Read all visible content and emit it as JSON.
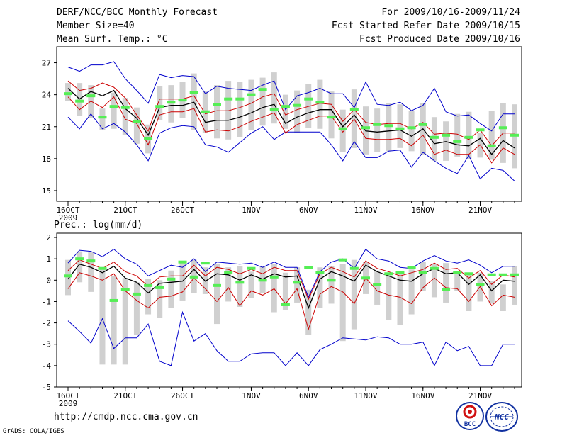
{
  "header": {
    "title": "DERF/NCC/BCC Monthly Forecast",
    "member_size": "Member Size=40",
    "variable": "Mean Surf. Temp.: °C",
    "period": "For 2009/10/16-2009/11/24",
    "refer_date": "Fcst Started Refer Date 2009/10/15",
    "produced_date": "Fcst Produced Date 2009/10/16"
  },
  "footer": {
    "url": "http://cmdp.ncc.cma.gov.cn",
    "grads": "GrADS: COLA/IGES"
  },
  "logos": {
    "bcc": "BCC",
    "ncc": "NCC"
  },
  "colors": {
    "max_min": "#0000cc",
    "spread": "#cc0000",
    "mean": "#000000",
    "observed": "#55ee55",
    "box": "#d0d0d0"
  },
  "chart_data": [
    {
      "type": "line",
      "title": "Mean Surf. Temp.: °C",
      "ylim": [
        14,
        28.5
      ],
      "yticks": [
        15,
        18,
        21,
        24,
        27
      ],
      "xticks": [
        {
          "day": 1,
          "label": "16OCT",
          "sub": "2009"
        },
        {
          "day": 6,
          "label": "21OCT"
        },
        {
          "day": 11,
          "label": "26OCT"
        },
        {
          "day": 17,
          "label": "1NOV"
        },
        {
          "day": 22,
          "label": "6NOV"
        },
        {
          "day": 27,
          "label": "11NOV"
        },
        {
          "day": 32,
          "label": "16NOV"
        },
        {
          "day": 37,
          "label": "21NOV"
        }
      ],
      "x": [
        1,
        2,
        3,
        4,
        5,
        6,
        7,
        8,
        9,
        10,
        11,
        12,
        13,
        14,
        15,
        16,
        17,
        18,
        19,
        20,
        21,
        22,
        23,
        24,
        25,
        26,
        27,
        28,
        29,
        30,
        31,
        32,
        33,
        34,
        35,
        36,
        37,
        38,
        39,
        40
      ],
      "series": [
        {
          "name": "max",
          "values": [
            26.6,
            26.2,
            26.8,
            26.8,
            27.1,
            25.5,
            24.4,
            23.2,
            25.9,
            25.6,
            25.8,
            25.7,
            24.1,
            24.8,
            24.6,
            24.5,
            24.4,
            24.9,
            25.3,
            22.6,
            23.9,
            24.2,
            24.6,
            24.1,
            24.1,
            22.8,
            25.2,
            23.1,
            23.0,
            23.3,
            22.5,
            23.0,
            24.6,
            22.4,
            22.0,
            22.1,
            21.3,
            20.6,
            22.2,
            22.2
          ]
        },
        {
          "name": "upper",
          "values": [
            25.3,
            24.4,
            24.6,
            25.1,
            24.7,
            23.7,
            22.1,
            20.6,
            23.6,
            23.6,
            23.6,
            23.9,
            22.2,
            22.5,
            22.5,
            22.8,
            23.2,
            23.8,
            24.1,
            22.1,
            22.6,
            22.9,
            23.2,
            23.1,
            21.5,
            22.6,
            21.4,
            21.2,
            21.3,
            21.3,
            20.8,
            21.4,
            20.3,
            20.4,
            20.3,
            19.8,
            20.7,
            19.2,
            20.4,
            20.4
          ]
        },
        {
          "name": "mean",
          "values": [
            24.6,
            23.6,
            24.3,
            23.9,
            24.4,
            22.7,
            21.8,
            20.2,
            22.8,
            23.0,
            23.0,
            23.3,
            21.4,
            21.6,
            21.6,
            21.9,
            22.3,
            22.8,
            23.1,
            21.3,
            21.9,
            22.3,
            22.6,
            22.6,
            21.0,
            22.1,
            20.6,
            20.5,
            20.6,
            20.7,
            20.1,
            20.8,
            19.4,
            19.6,
            19.3,
            19.2,
            19.9,
            18.4,
            19.7,
            19.0
          ]
        },
        {
          "name": "lower",
          "values": [
            23.8,
            22.6,
            23.4,
            22.8,
            23.8,
            21.7,
            21.3,
            19.3,
            22.1,
            22.4,
            22.4,
            22.7,
            20.5,
            20.7,
            20.6,
            21.0,
            21.5,
            21.9,
            22.3,
            20.4,
            21.2,
            21.6,
            22.0,
            22.0,
            20.5,
            21.7,
            19.9,
            19.8,
            19.8,
            19.9,
            19.2,
            20.2,
            18.4,
            18.8,
            18.4,
            18.4,
            19.3,
            17.6,
            19.0,
            18.4
          ]
        },
        {
          "name": "min",
          "values": [
            21.9,
            20.8,
            22.2,
            20.8,
            21.3,
            20.5,
            19.3,
            17.8,
            20.4,
            20.9,
            21.1,
            21.0,
            19.3,
            19.1,
            18.6,
            19.5,
            20.4,
            21.0,
            19.8,
            20.5,
            20.5,
            20.5,
            20.5,
            19.3,
            17.8,
            19.6,
            18.1,
            18.1,
            18.7,
            18.8,
            17.2,
            18.6,
            17.8,
            17.1,
            16.6,
            18.3,
            16.1,
            17.1,
            16.9,
            15.9
          ]
        },
        {
          "name": "observed",
          "values": [
            24.1,
            23.4,
            23.9,
            21.9,
            22.9,
            22.8,
            21.5,
            19.9,
            22.9,
            23.3,
            23.5,
            24.2,
            22.4,
            23.1,
            23.6,
            23.6,
            24.0,
            24.5,
            22.6,
            22.9,
            23.0,
            23.6,
            23.3,
            21.9,
            20.8,
            22.6,
            20.9,
            21.2,
            21.1,
            20.8,
            20.9,
            21.2,
            20.0,
            20.2,
            19.6,
            20.0,
            20.7,
            19.2,
            20.9,
            20.2
          ]
        }
      ],
      "boxes": [
        [
          23.4,
          25.1
        ],
        [
          22.0,
          25.1
        ],
        [
          21.8,
          24.9
        ],
        [
          20.7,
          22.7
        ],
        [
          20.8,
          24.2
        ],
        [
          20.2,
          23.7
        ],
        [
          19.4,
          22.8
        ],
        [
          18.5,
          21.2
        ],
        [
          21.6,
          24.8
        ],
        [
          21.4,
          24.9
        ],
        [
          21.8,
          25.2
        ],
        [
          20.7,
          26.0
        ],
        [
          20.4,
          24.3
        ],
        [
          19.9,
          24.9
        ],
        [
          19.8,
          25.3
        ],
        [
          20.0,
          25.2
        ],
        [
          20.7,
          25.4
        ],
        [
          21.1,
          25.6
        ],
        [
          21.3,
          26.1
        ],
        [
          20.8,
          24.0
        ],
        [
          20.4,
          24.4
        ],
        [
          20.9,
          25.0
        ],
        [
          20.8,
          25.4
        ],
        [
          19.9,
          24.3
        ],
        [
          18.6,
          22.6
        ],
        [
          19.0,
          24.5
        ],
        [
          18.4,
          22.9
        ],
        [
          18.6,
          22.7
        ],
        [
          18.7,
          23.2
        ],
        [
          19.0,
          23.1
        ],
        [
          18.7,
          22.5
        ],
        [
          18.4,
          23.2
        ],
        [
          17.8,
          21.9
        ],
        [
          17.8,
          21.5
        ],
        [
          18.2,
          22.2
        ],
        [
          18.0,
          22.4
        ],
        [
          18.1,
          20.4
        ],
        [
          17.9,
          22.5
        ],
        [
          17.6,
          23.2
        ],
        [
          17.1,
          23.1
        ]
      ]
    },
    {
      "type": "line",
      "title": "Prec.: log(mm/d)",
      "ylim": [
        -5,
        2.2
      ],
      "yticks": [
        -5,
        -4,
        -3,
        -2,
        -1,
        0,
        1,
        2
      ],
      "xticks": [
        {
          "day": 1,
          "label": "16OCT",
          "sub": "2009"
        },
        {
          "day": 6,
          "label": "21OCT"
        },
        {
          "day": 11,
          "label": "26OCT"
        },
        {
          "day": 17,
          "label": "1NOV"
        },
        {
          "day": 22,
          "label": "6NOV"
        },
        {
          "day": 27,
          "label": "11NOV"
        },
        {
          "day": 32,
          "label": "16NOV"
        },
        {
          "day": 37,
          "label": "21NOV"
        }
      ],
      "x": [
        1,
        2,
        3,
        4,
        5,
        6,
        7,
        8,
        9,
        10,
        11,
        12,
        13,
        14,
        15,
        16,
        17,
        18,
        19,
        20,
        21,
        22,
        23,
        24,
        25,
        26,
        27,
        28,
        29,
        30,
        31,
        32,
        33,
        34,
        35,
        36,
        37,
        38,
        39,
        40
      ],
      "series": [
        {
          "name": "max",
          "values": [
            0.8,
            1.4,
            1.35,
            1.1,
            1.45,
            1.0,
            0.75,
            0.2,
            0.45,
            0.7,
            0.6,
            1.0,
            0.4,
            0.85,
            0.8,
            0.75,
            0.8,
            0.6,
            0.85,
            0.6,
            0.6,
            -0.8,
            0.4,
            0.85,
            1.0,
            0.55,
            1.45,
            1.0,
            0.9,
            0.6,
            0.55,
            0.9,
            1.15,
            0.9,
            0.8,
            0.95,
            0.7,
            0.35,
            0.65,
            0.65
          ]
        },
        {
          "name": "upper",
          "values": [
            0.45,
            0.95,
            0.75,
            0.55,
            0.85,
            0.4,
            0.2,
            -0.3,
            0.15,
            0.2,
            0.2,
            0.7,
            0.2,
            0.6,
            0.5,
            0.3,
            0.5,
            0.3,
            0.6,
            0.45,
            0.45,
            -0.9,
            0.3,
            0.6,
            0.4,
            0.15,
            0.9,
            0.55,
            0.4,
            0.2,
            0.35,
            0.5,
            0.8,
            0.5,
            0.55,
            0.1,
            0.45,
            -0.2,
            0.25,
            0.15
          ]
        },
        {
          "name": "mean",
          "values": [
            0.05,
            0.75,
            0.6,
            0.35,
            0.65,
            0.1,
            -0.1,
            -0.6,
            -0.15,
            -0.1,
            -0.05,
            0.5,
            -0.05,
            0.3,
            0.25,
            0.0,
            0.25,
            0.05,
            0.3,
            0.15,
            0.2,
            -1.3,
            0.05,
            0.4,
            0.2,
            -0.05,
            0.7,
            0.4,
            0.2,
            0.0,
            -0.05,
            0.3,
            0.55,
            0.3,
            0.35,
            -0.2,
            0.25,
            -0.5,
            0.0,
            -0.05
          ]
        },
        {
          "name": "lower",
          "values": [
            -0.4,
            0.35,
            0.2,
            0.0,
            0.3,
            -0.5,
            -0.95,
            -1.3,
            -0.8,
            -0.75,
            -0.55,
            0.1,
            -0.4,
            -1.0,
            -0.35,
            -1.2,
            -0.5,
            -0.7,
            -0.4,
            -1.1,
            -0.4,
            -2.3,
            -0.65,
            -0.3,
            -0.55,
            -1.1,
            0.1,
            -0.5,
            -0.7,
            -0.8,
            -1.1,
            -0.35,
            0.1,
            -0.35,
            -0.4,
            -1.0,
            -0.3,
            -1.2,
            -0.7,
            -0.8
          ]
        },
        {
          "name": "min",
          "values": [
            -1.9,
            -2.4,
            -2.95,
            -1.8,
            -3.2,
            -2.7,
            -2.7,
            -2.05,
            -3.8,
            -4.0,
            -1.5,
            -2.85,
            -2.5,
            -3.3,
            -3.8,
            -3.8,
            -3.45,
            -3.4,
            -3.4,
            -4.0,
            -3.4,
            -4.0,
            -3.25,
            -3.0,
            -2.7,
            -2.75,
            -2.8,
            -2.65,
            -2.7,
            -3.0,
            -3.0,
            -2.9,
            -4.0,
            -2.9,
            -3.3,
            -3.1,
            -4.0,
            -4.0,
            -3.0,
            -3.0
          ]
        },
        {
          "name": "observed",
          "values": [
            0.2,
            1.0,
            0.9,
            0.55,
            -0.95,
            -0.45,
            -0.65,
            -0.25,
            -0.35,
            0.05,
            0.85,
            0.15,
            0.8,
            -0.25,
            0.35,
            -0.1,
            0.55,
            0.0,
            0.15,
            -1.15,
            -0.1,
            0.6,
            0.35,
            0.0,
            0.95,
            0.55,
            0.1,
            -0.2,
            0.3,
            0.35,
            0.6,
            0.35,
            0.55,
            -0.45,
            0.35,
            0.3,
            -0.2,
            0.25,
            0.25,
            0.25
          ]
        }
      ],
      "boxes": [
        [
          -0.7,
          0.95
        ],
        [
          -0.1,
          1.35
        ],
        [
          -0.55,
          1.3
        ],
        [
          -3.95,
          0.55
        ],
        [
          -3.95,
          0.2
        ],
        [
          -3.95,
          0.1
        ],
        [
          -2.55,
          -0.1
        ],
        [
          -1.6,
          0.05
        ],
        [
          -1.75,
          0.0
        ],
        [
          -1.3,
          0.45
        ],
        [
          -0.95,
          0.8
        ],
        [
          -0.6,
          0.95
        ],
        [
          -0.65,
          0.6
        ],
        [
          -2.05,
          0.75
        ],
        [
          -1.0,
          0.6
        ],
        [
          -1.25,
          0.65
        ],
        [
          -0.85,
          0.4
        ],
        [
          -0.6,
          0.65
        ],
        [
          -1.5,
          0.75
        ],
        [
          -1.4,
          0.35
        ],
        [
          -1.05,
          0.6
        ],
        [
          -2.55,
          -0.45
        ],
        [
          -1.3,
          0.6
        ],
        [
          -1.1,
          0.65
        ],
        [
          -2.85,
          0.75
        ],
        [
          -2.3,
          0.95
        ],
        [
          -0.65,
          0.85
        ],
        [
          -1.15,
          0.45
        ],
        [
          -1.85,
          0.35
        ],
        [
          -2.1,
          0.3
        ],
        [
          -1.6,
          0.5
        ],
        [
          -0.5,
          0.85
        ],
        [
          -0.8,
          0.75
        ],
        [
          -1.05,
          0.8
        ],
        [
          -0.5,
          0.4
        ],
        [
          -1.45,
          0.35
        ],
        [
          -1.0,
          0.35
        ],
        [
          -1.1,
          -0.05
        ],
        [
          -1.45,
          -0.2
        ],
        [
          -1.15,
          0.65
        ]
      ]
    }
  ]
}
